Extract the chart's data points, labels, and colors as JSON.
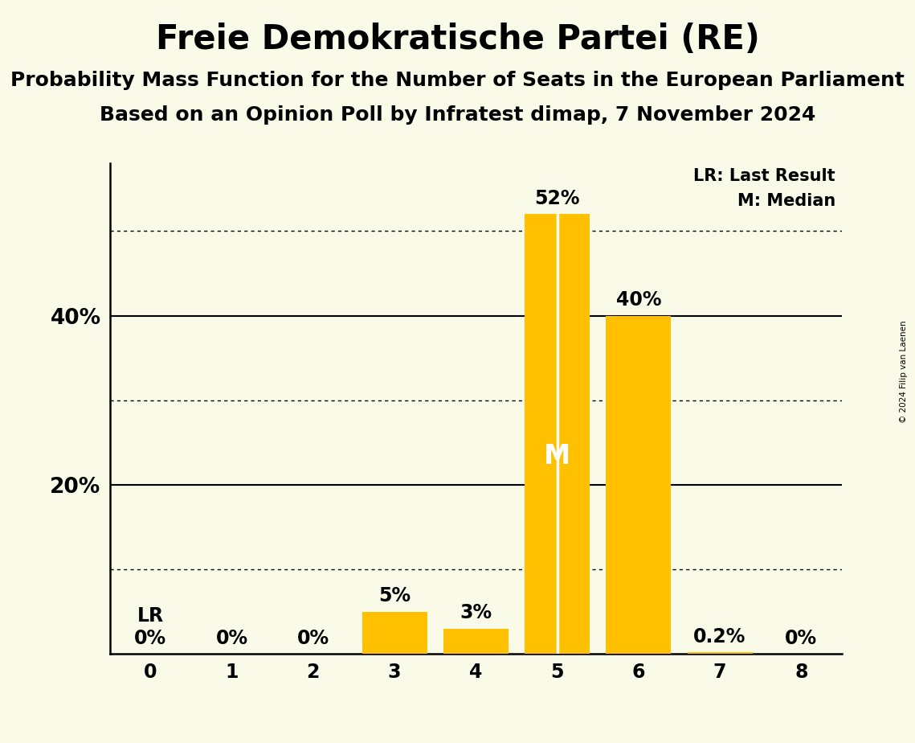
{
  "title": "Freie Demokratische Partei (RE)",
  "subtitle1": "Probability Mass Function for the Number of Seats in the European Parliament",
  "subtitle2": "Based on an Opinion Poll by Infratest dimap, 7 November 2024",
  "copyright": "© 2024 Filip van Laenen",
  "categories": [
    0,
    1,
    2,
    3,
    4,
    5,
    6,
    7,
    8
  ],
  "values": [
    0.0,
    0.0,
    0.0,
    5.0,
    3.0,
    52.0,
    40.0,
    0.2,
    0.0
  ],
  "bar_color": "#FFC000",
  "background_color": "#FAFAE8",
  "median_seat": 5,
  "last_result_seat": 5,
  "median_label": "M",
  "lr_label": "LR",
  "lr_x": 0,
  "ylabel_ticks": [
    20,
    40
  ],
  "ytick_labels": [
    "20%",
    "40%"
  ],
  "solid_grid_values": [
    20,
    40
  ],
  "dotted_grid_values": [
    10,
    30,
    50
  ],
  "bar_labels": [
    "0%",
    "0%",
    "0%",
    "5%",
    "3%",
    "52%",
    "40%",
    "0.2%",
    "0%"
  ],
  "legend_text1": "LR: Last Result",
  "legend_text2": "M: Median",
  "title_fontsize": 30,
  "subtitle_fontsize": 18,
  "tick_fontsize": 17,
  "bar_label_fontsize": 17,
  "median_label_fontsize": 24,
  "legend_fontsize": 15,
  "ytick_fontsize": 19,
  "ylim_max": 58,
  "xlim": [
    -0.5,
    8.5
  ]
}
